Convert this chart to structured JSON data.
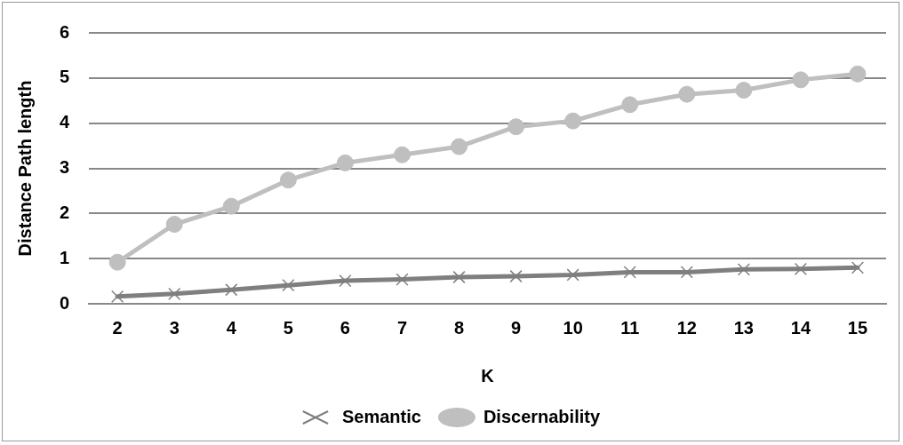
{
  "chart_data": {
    "type": "line",
    "xlabel": "K",
    "ylabel": "Distance Path length",
    "categories": [
      "2",
      "3",
      "4",
      "5",
      "6",
      "7",
      "8",
      "9",
      "10",
      "11",
      "12",
      "13",
      "14",
      "15"
    ],
    "series": [
      {
        "name": "Semantic",
        "color": "#7f7f7f",
        "marker": "cross",
        "values": [
          0.16,
          0.22,
          0.31,
          0.41,
          0.51,
          0.54,
          0.59,
          0.61,
          0.64,
          0.7,
          0.7,
          0.76,
          0.77,
          0.8
        ]
      },
      {
        "name": "Discernability",
        "color": "#bfbfbf",
        "marker": "circle",
        "values": [
          0.92,
          1.76,
          2.16,
          2.74,
          3.12,
          3.3,
          3.48,
          3.92,
          4.05,
          4.41,
          4.64,
          4.73,
          4.96,
          5.09
        ]
      }
    ],
    "ylim": [
      0,
      6
    ],
    "yticks": [
      0,
      1,
      2,
      3,
      4,
      5,
      6
    ],
    "grid": "y",
    "legend": "bottom"
  }
}
